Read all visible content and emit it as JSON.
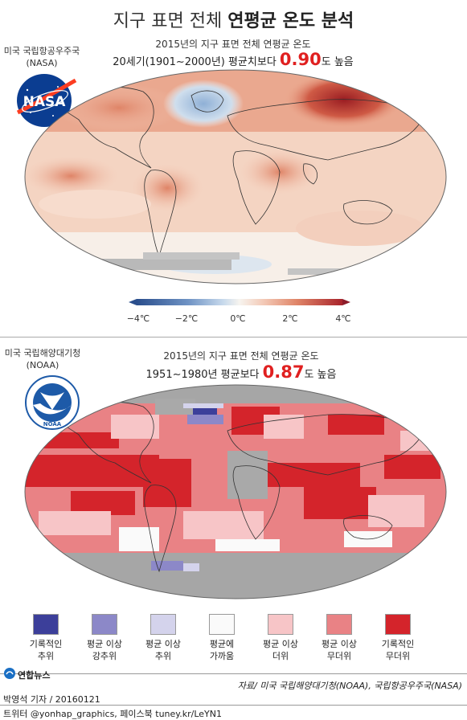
{
  "title": {
    "normal": "지구 표면 전체",
    "bold": "연평균 온도 분석"
  },
  "nasa": {
    "org_label": "미국 국립항공우주국",
    "org_abbr": "(NASA)",
    "logo_text": "NASA",
    "subtitle": "2015년의 지구 표면 전체 연평균 온도",
    "stat_prefix": "20세기(1901∼2000년) 평균치보다",
    "stat_value": "0.90",
    "stat_suffix": "도 높음"
  },
  "colorbar": {
    "ticks": [
      "−4℃",
      "−2℃",
      "0℃",
      "2℃",
      "4℃"
    ],
    "colors": [
      "#2a4e8c",
      "#6f93c4",
      "#c7d9ec",
      "#f7f4ef",
      "#f3c8b5",
      "#df8467",
      "#a8232b"
    ]
  },
  "noaa": {
    "org_label": "미국 국립해양대기청",
    "org_abbr": "(NOAA)",
    "logo_text": "NOAA",
    "subtitle": "2015년의 지구 표면 전체 연평균 온도",
    "stat_prefix": "1951∼1980년 평균보다",
    "stat_value": "0.87",
    "stat_suffix": "도 높음"
  },
  "legend": [
    {
      "line1": "기록적인",
      "line2": "추위",
      "color": "#3c3f9a"
    },
    {
      "line1": "평균 이상",
      "line2": "강추위",
      "color": "#8c88c8"
    },
    {
      "line1": "평균 이상",
      "line2": "추위",
      "color": "#d4d3ec"
    },
    {
      "line1": "평균에",
      "line2": "가까움",
      "color": "#fafafa"
    },
    {
      "line1": "평균 이상",
      "line2": "더위",
      "color": "#f7c5c7"
    },
    {
      "line1": "평균 이상",
      "line2": "무더위",
      "color": "#e98285"
    },
    {
      "line1": "기록적인",
      "line2": "무더위",
      "color": "#d4242b"
    }
  ],
  "footer": {
    "agency": "연합뉴스",
    "source": "자료/ 미국 국립해양대기청(NOAA), 국립항공우주국(NASA)",
    "reporter": "박영석 기자 / 20160121",
    "social": "트위터 @yonhap_graphics, 페이스북 tuney.kr/LeYN1"
  }
}
